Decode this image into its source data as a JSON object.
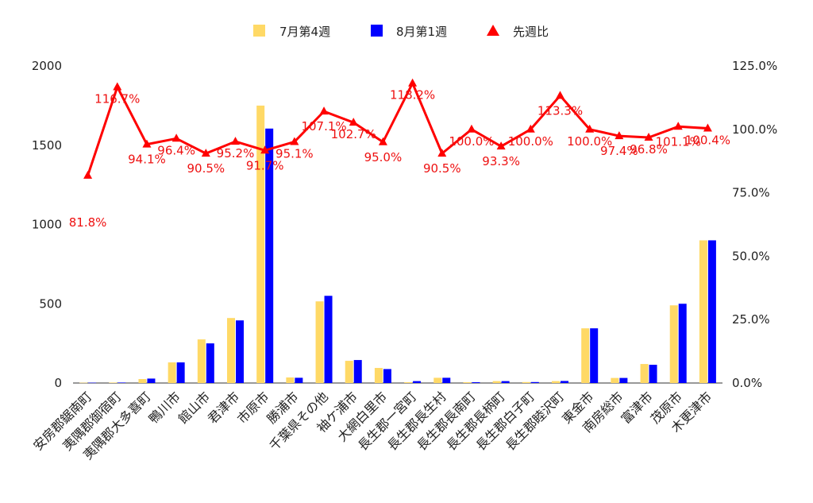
{
  "chart_data": {
    "type": "bar",
    "categories": [
      "安房郡鋸南町",
      "夷隅郡御宿町",
      "夷隅郡大多喜町",
      "鴨川市",
      "館山市",
      "君津市",
      "市原市",
      "勝浦市",
      "千葉県その他",
      "袖ケ浦市",
      "大網白里市",
      "長生郡一宮町",
      "長生郡長生村",
      "長生郡長南町",
      "長生郡長柄町",
      "長生郡白子町",
      "長生郡睦沢町",
      "東金市",
      "南房総市",
      "富津市",
      "茂原市",
      "木更津市"
    ],
    "series": [
      {
        "name": "7月第4週",
        "type": "bar",
        "axis": "left",
        "color": "#FFD966",
        "values": [
          2,
          3,
          25,
          130,
          275,
          410,
          1750,
          35,
          515,
          140,
          95,
          5,
          33,
          5,
          12,
          6,
          12,
          345,
          32,
          120,
          490,
          900
        ]
      },
      {
        "name": "8月第1週",
        "type": "bar",
        "axis": "left",
        "color": "#0000FF",
        "values": [
          2,
          3,
          28,
          130,
          250,
          395,
          1605,
          33,
          550,
          145,
          88,
          12,
          33,
          5,
          12,
          6,
          13,
          345,
          32,
          115,
          500,
          900
        ]
      },
      {
        "name": "先週比",
        "type": "line",
        "axis": "right",
        "color": "#FF0000",
        "values": [
          81.8,
          116.7,
          94.1,
          96.4,
          90.5,
          95.2,
          91.7,
          95.1,
          107.1,
          102.7,
          95.0,
          118.2,
          90.5,
          100.0,
          93.3,
          100.0,
          113.3,
          100.0,
          97.4,
          96.8,
          101.1,
          100.4
        ],
        "labels": [
          "81.8%",
          "116.7%",
          "94.1%",
          "96.4%",
          "90.5%",
          "95.2%",
          "91.7%",
          "95.1%",
          "107.1%",
          "102.7%",
          "95.0%",
          "118.2%",
          "90.5%",
          "100.0%",
          "93.3%",
          "100.0%",
          "113.3%",
          "100.0%",
          "97.4%",
          "96.8%",
          "101.1%",
          "100.4%"
        ]
      }
    ],
    "y_left": {
      "range": [
        0,
        2000
      ],
      "ticks": [
        0,
        500,
        1000,
        1500,
        2000
      ],
      "tick_labels": [
        "0",
        "500",
        "1000",
        "1500",
        "2000"
      ]
    },
    "y_right": {
      "range": [
        0,
        125
      ],
      "ticks": [
        0,
        25,
        50,
        75,
        100,
        125
      ],
      "tick_labels": [
        "0.0%",
        "25.0%",
        "50.0%",
        "75.0%",
        "100.0%",
        "125.0%"
      ]
    },
    "grid": false,
    "legend_position": "top-center"
  },
  "legend": {
    "items": [
      {
        "label": "7月第4週",
        "color": "#FFD966",
        "shape": "square"
      },
      {
        "label": "8月第1週",
        "color": "#0000FF",
        "shape": "square"
      },
      {
        "label": "先週比",
        "color": "#FF0000",
        "shape": "triangle"
      }
    ]
  }
}
